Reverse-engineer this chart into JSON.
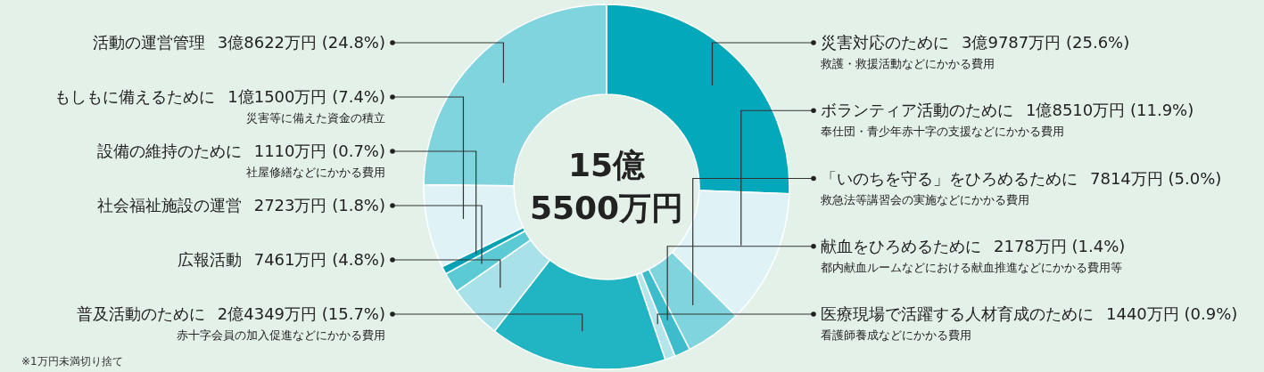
{
  "chart_data": {
    "type": "donut",
    "title": "15億\n5500万円",
    "categories": [
      "災害対応のために",
      "ボランティア活動のために",
      "「いのちを守る」をひろめるために",
      "献血をひろめるために",
      "医療現場で活躍する人材育成のために",
      "普及活動のために",
      "広報活動",
      "社会福祉施設の運営",
      "設備の維持のために",
      "もしもに備えるために",
      "活動の運営管理"
    ],
    "values": [
      25.6,
      11.9,
      5.0,
      1.4,
      0.9,
      15.7,
      4.8,
      1.8,
      0.7,
      7.4,
      24.8
    ],
    "value_labels": [
      "3億9787万円 (25.6%)",
      "1億8510万円 (11.9%)",
      "7814万円 (5.0%)",
      "2178万円 (1.4%)",
      "1440万円 (0.9%)",
      "2億4349万円 (15.7%)",
      "7461万円 (4.8%)",
      "2723万円 (1.8%)",
      "1110万円 (0.7%)",
      "1億1500万円 (7.4%)",
      "3億8622万円 (24.8%)"
    ],
    "colors": [
      "#03a8bb",
      "#dff3f6",
      "#7fd4dd",
      "#3fbccb",
      "#b3e5eb",
      "#21b5c4",
      "#a8e1e8",
      "#5ccad5",
      "#05a2b6",
      "#dff3f6",
      "#80d4de"
    ],
    "annotations": [
      "救護・救援活動などにかかる費用",
      "奉仕団・青少年赤十字の支援などにかかる費用",
      "救急法等講習会の実施などにかかる費用",
      "都内献血ルームなどにおける献血推進などにかかる費用等",
      "看護師養成などにかかる費用",
      "赤十字会員の加入促進などにかかる費用",
      "社屋修繕などにかかる費用",
      "災害等に備えた資金の積立",
      "※1万円未満切り捨て"
    ],
    "legend": false
  }
}
